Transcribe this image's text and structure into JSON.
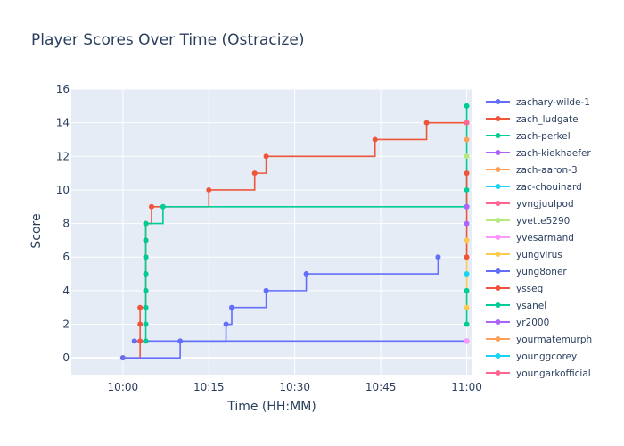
{
  "chart_data": {
    "type": "line",
    "title": "Player Scores Over Time (Ostracize)",
    "xlabel": "Time (HH:MM)",
    "ylabel": "Score",
    "x_ticks": [
      "10:00",
      "10:15",
      "10:30",
      "10:45",
      "11:00"
    ],
    "y_ticks": [
      0,
      2,
      4,
      6,
      8,
      10,
      12,
      14,
      16
    ],
    "xlim": [
      "09:51",
      "11:01"
    ],
    "ylim": [
      -1,
      16
    ],
    "grid": true,
    "legend_position": "right",
    "line_shape": "step",
    "series": [
      {
        "name": "zachary-wilde-1",
        "color": "#636efa",
        "points": [
          [
            "10:02",
            1
          ],
          [
            "11:00",
            1
          ]
        ]
      },
      {
        "name": "zach_ludgate",
        "color": "#EF553B",
        "points": [
          [
            "10:00",
            0
          ],
          [
            "10:03",
            1
          ],
          [
            "10:03",
            2
          ],
          [
            "10:03",
            3
          ],
          [
            "10:04",
            4
          ],
          [
            "10:04",
            5
          ],
          [
            "10:04",
            6
          ],
          [
            "10:04",
            7
          ],
          [
            "10:04",
            8
          ],
          [
            "10:05",
            9
          ],
          [
            "10:15",
            10
          ],
          [
            "10:23",
            11
          ],
          [
            "10:25",
            12
          ],
          [
            "10:44",
            13
          ],
          [
            "10:53",
            14
          ],
          [
            "11:00",
            14
          ]
        ]
      },
      {
        "name": "zach-perkel",
        "color": "#00cc96",
        "points": [
          [
            "10:04",
            1
          ],
          [
            "10:04",
            2
          ],
          [
            "10:04",
            3
          ],
          [
            "10:04",
            4
          ],
          [
            "10:04",
            5
          ],
          [
            "10:04",
            6
          ],
          [
            "10:04",
            7
          ],
          [
            "10:04",
            8
          ],
          [
            "10:07",
            9
          ],
          [
            "11:00",
            9
          ],
          [
            "11:00",
            10
          ],
          [
            "11:00",
            15
          ]
        ]
      },
      {
        "name": "zach-kiekhaefer",
        "color": "#ab63fa",
        "points": [
          [
            "11:00",
            9
          ]
        ]
      },
      {
        "name": "zach-aaron-3",
        "color": "#FFA15A",
        "points": [
          [
            "10:00",
            0
          ]
        ]
      },
      {
        "name": "zac-chouinard",
        "color": "#19d3f3",
        "points": [
          [
            "11:00",
            1
          ]
        ]
      },
      {
        "name": "yvngjuulpod",
        "color": "#FF6692",
        "points": [
          [
            "11:00",
            1
          ]
        ]
      },
      {
        "name": "yvette5290",
        "color": "#B6E880",
        "points": [
          [
            "11:00",
            12
          ]
        ]
      },
      {
        "name": "yvesarmand",
        "color": "#FF97FF",
        "points": [
          [
            "11:00",
            1
          ]
        ]
      },
      {
        "name": "yungvirus",
        "color": "#FECB52",
        "points": [
          [
            "11:00",
            3
          ],
          [
            "11:00",
            7
          ]
        ]
      },
      {
        "name": "yung8oner",
        "color": "#636efa",
        "points": [
          [
            "10:00",
            0
          ],
          [
            "10:10",
            1
          ],
          [
            "10:18",
            2
          ],
          [
            "10:19",
            3
          ],
          [
            "10:25",
            4
          ],
          [
            "10:32",
            5
          ],
          [
            "10:55",
            6
          ]
        ]
      },
      {
        "name": "ysseg",
        "color": "#EF553B",
        "points": [
          [
            "11:00",
            6
          ],
          [
            "11:00",
            11
          ]
        ]
      },
      {
        "name": "ysanel",
        "color": "#00cc96",
        "points": [
          [
            "11:00",
            2
          ],
          [
            "11:00",
            4
          ]
        ]
      },
      {
        "name": "yr2000",
        "color": "#ab63fa",
        "points": [
          [
            "11:00",
            8
          ]
        ]
      },
      {
        "name": "yourmatemurph",
        "color": "#FFA15A",
        "points": [
          [
            "11:00",
            13
          ]
        ]
      },
      {
        "name": "younggcorey",
        "color": "#19d3f3",
        "points": [
          [
            "11:00",
            5
          ]
        ]
      },
      {
        "name": "youngarkofficial",
        "color": "#FF6692",
        "points": [
          [
            "11:00",
            14
          ]
        ]
      }
    ]
  }
}
